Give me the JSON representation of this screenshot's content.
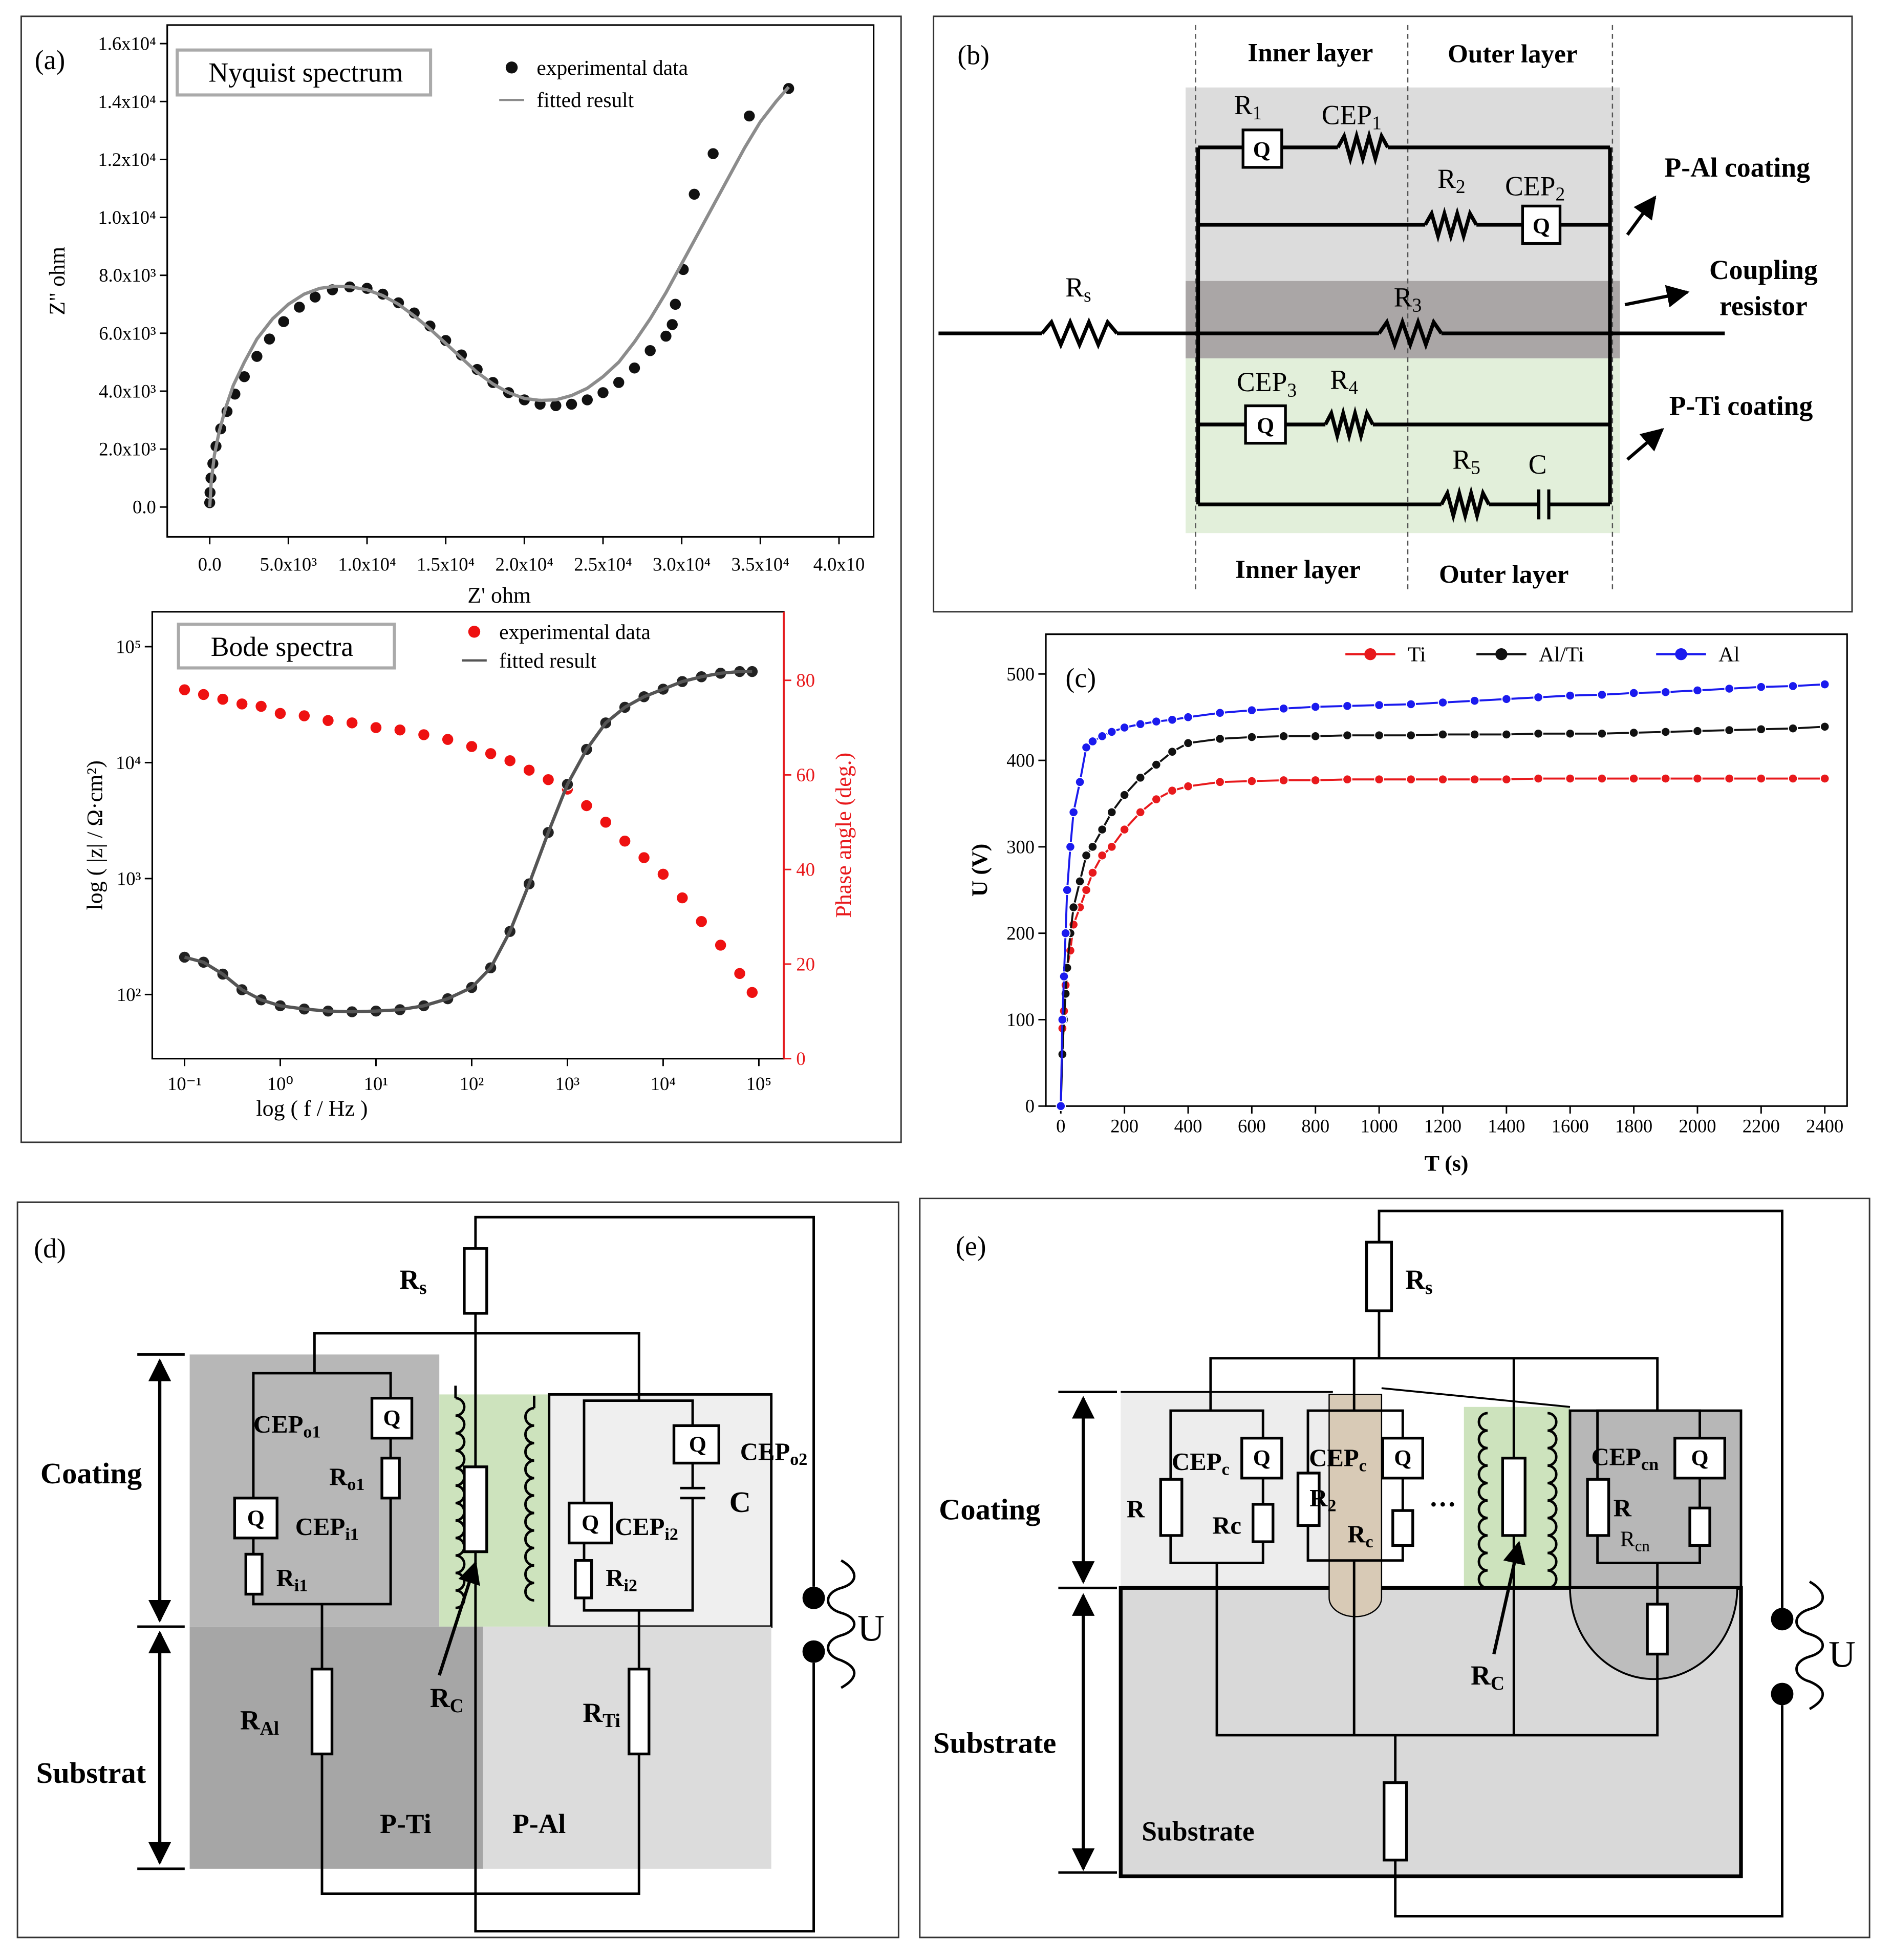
{
  "chart_data": [
    {
      "type": "scatter",
      "label": "(a)",
      "title": "Nyquist spectrum",
      "x_label": "Z' ohm",
      "y_label": "Z\" ohm",
      "xlim": [
        -2700,
        42200
      ],
      "ylim": [
        -1030,
        16640
      ],
      "xticks": [
        {
          "value": 0,
          "label": "0.0"
        },
        {
          "value": 5000,
          "label": "5.0x10³"
        },
        {
          "value": 10000,
          "label": "1.0x10⁴"
        },
        {
          "value": 15000,
          "label": "1.5x10⁴"
        },
        {
          "value": 20000,
          "label": "2.0x10⁴"
        },
        {
          "value": 25000,
          "label": "2.5x10⁴"
        },
        {
          "value": 30000,
          "label": "3.0x10⁴"
        },
        {
          "value": 35000,
          "label": "3.5x10⁴"
        },
        {
          "value": 40000,
          "label": "4.0x10"
        }
      ],
      "yticks": [
        {
          "value": 0,
          "label": "0.0"
        },
        {
          "value": 2000,
          "label": "2.0x10³"
        },
        {
          "value": 4000,
          "label": "4.0x10³"
        },
        {
          "value": 6000,
          "label": "6.0x10³"
        },
        {
          "value": 8000,
          "label": "8.0x10³"
        },
        {
          "value": 10000,
          "label": "1.0x10⁴"
        },
        {
          "value": 12000,
          "label": "1.2x10⁴"
        },
        {
          "value": 14000,
          "label": "1.4x10⁴"
        },
        {
          "value": 16000,
          "label": "1.6x10⁴"
        }
      ],
      "legend": "upper right",
      "series": [
        {
          "name": "experimental data",
          "color": "#111111",
          "marker": "circle",
          "x": [
            0,
            20,
            80,
            200,
            400,
            700,
            1100,
            1600,
            2200,
            3000,
            3800,
            4700,
            5700,
            6700,
            7800,
            8900,
            10000,
            11000,
            12000,
            13000,
            14000,
            15000,
            16000,
            17000,
            18000,
            19000,
            20000,
            21000,
            22000,
            23000,
            24000,
            25000,
            26000,
            27000,
            28000,
            29000,
            29400,
            29600,
            30100,
            30800,
            32000,
            34300,
            36800
          ],
          "values": [
            150,
            500,
            1000,
            1500,
            2100,
            2700,
            3300,
            3900,
            4500,
            5200,
            5800,
            6400,
            6900,
            7250,
            7500,
            7600,
            7550,
            7350,
            7050,
            6700,
            6250,
            5750,
            5250,
            4750,
            4300,
            3950,
            3700,
            3550,
            3500,
            3550,
            3700,
            3950,
            4300,
            4800,
            5400,
            5900,
            6300,
            7000,
            8200,
            10800,
            12200,
            13500,
            14450
          ]
        },
        {
          "name": "fitted result",
          "color": "#8c8c8c",
          "line": true,
          "x": [
            0,
            100,
            300,
            600,
            1000,
            1500,
            2200,
            3000,
            4000,
            5000,
            6000,
            7000,
            8000,
            9000,
            10000,
            11000,
            12000,
            13000,
            14000,
            15000,
            16000,
            17000,
            18000,
            19000,
            20000,
            21000,
            22000,
            23000,
            24000,
            25000,
            26000,
            27000,
            28000,
            29000,
            30000,
            31000,
            32000,
            33000,
            34000,
            35000,
            36000,
            36800
          ],
          "values": [
            0,
            900,
            1800,
            2600,
            3400,
            4200,
            5000,
            5800,
            6500,
            7000,
            7350,
            7550,
            7620,
            7600,
            7500,
            7300,
            7000,
            6600,
            6150,
            5650,
            5150,
            4650,
            4250,
            3950,
            3750,
            3680,
            3700,
            3850,
            4100,
            4500,
            5000,
            5700,
            6500,
            7400,
            8400,
            9400,
            10400,
            11400,
            12400,
            13300,
            14000,
            14500
          ]
        }
      ]
    },
    {
      "type": "line",
      "title": "Bode spectra",
      "x_label": "log ( f / Hz )",
      "y_label": "log ( |z| / Ω·cm²)",
      "y2_label": "Phase angle (deg.)",
      "xscale": "log",
      "yscale": "log",
      "xlim": [
        0.046,
        182000
      ],
      "ylim": [
        28,
        200000
      ],
      "y2lim": [
        0,
        94.5
      ],
      "xticks": [
        {
          "value": 0.1,
          "label": "10⁻¹"
        },
        {
          "value": 1,
          "label": "10⁰"
        },
        {
          "value": 10,
          "label": "10¹"
        },
        {
          "value": 100,
          "label": "10²"
        },
        {
          "value": 1000,
          "label": "10³"
        },
        {
          "value": 10000,
          "label": "10⁴"
        },
        {
          "value": 100000,
          "label": "10⁵"
        }
      ],
      "yticks": [
        {
          "value": 100,
          "label": "10²"
        },
        {
          "value": 1000,
          "label": "10³"
        },
        {
          "value": 10000,
          "label": "10⁴"
        },
        {
          "value": 100000,
          "label": "10⁵"
        }
      ],
      "y2ticks": [
        0,
        20,
        40,
        60,
        80
      ],
      "y2_color": "#e8191c",
      "legend": "upper center",
      "x": [
        0.1,
        0.158,
        0.251,
        0.398,
        0.631,
        1,
        1.78,
        3.16,
        5.62,
        10,
        17.8,
        31.6,
        56.2,
        100,
        158,
        251,
        398,
        631,
        1000,
        1585,
        2512,
        3981,
        6310,
        10000,
        15849,
        25119,
        39811,
        63096,
        85114
      ],
      "series": [
        {
          "name": "experimental data",
          "color": "#ee1111",
          "marker": "circle",
          "axis": "y2",
          "values": [
            78,
            77,
            76,
            75,
            74.5,
            73,
            72.5,
            71.5,
            71,
            70,
            69.5,
            68.5,
            67.5,
            66,
            64.5,
            63,
            61,
            59,
            57,
            53.5,
            50,
            46,
            42.5,
            39,
            34,
            29,
            24,
            18,
            14
          ]
        },
        {
          "color": "#222222",
          "marker": "circle",
          "values": [
            210,
            190,
            150,
            110,
            90,
            80,
            75,
            72,
            71,
            72,
            74,
            80,
            92,
            115,
            170,
            350,
            900,
            2500,
            6500,
            13000,
            22000,
            30000,
            37000,
            43000,
            50000,
            55000,
            59000,
            61000,
            61000
          ]
        },
        {
          "name": "fitted result",
          "color": "#555555",
          "line": true,
          "values": [
            210,
            190,
            150,
            110,
            90,
            80,
            75,
            72,
            71,
            72,
            74,
            80,
            92,
            115,
            170,
            350,
            900,
            2500,
            6500,
            13000,
            22000,
            30000,
            37000,
            43000,
            50000,
            55000,
            59000,
            61000,
            61000
          ]
        }
      ]
    },
    {
      "type": "line",
      "label": "(c)",
      "x_label": "T (s)",
      "y_label": "U (V)",
      "xlim": [
        -47,
        2470
      ],
      "ylim": [
        0,
        546
      ],
      "xticks": [
        0,
        200,
        400,
        600,
        800,
        1000,
        1200,
        1400,
        1600,
        1800,
        2000,
        2200,
        2400
      ],
      "yticks": [
        0,
        100,
        200,
        300,
        400,
        500
      ],
      "legend": "upper right",
      "x": [
        0,
        5,
        10,
        15,
        20,
        30,
        40,
        60,
        80,
        100,
        130,
        160,
        200,
        250,
        300,
        350,
        400,
        500,
        600,
        700,
        800,
        900,
        1000,
        1100,
        1200,
        1300,
        1400,
        1500,
        1600,
        1700,
        1800,
        1900,
        2000,
        2100,
        2200,
        2300,
        2400
      ],
      "series": [
        {
          "name": "Ti",
          "color": "#e8191c",
          "line": true,
          "marker": "circle",
          "values": [
            0,
            90,
            110,
            140,
            160,
            180,
            210,
            230,
            250,
            270,
            290,
            300,
            320,
            340,
            355,
            365,
            370,
            375,
            376,
            377,
            377,
            378,
            378,
            378,
            378,
            378,
            378,
            379,
            379,
            379,
            379,
            379,
            379,
            379,
            379,
            379,
            379
          ]
        },
        {
          "name": "Al/Ti",
          "color": "#111111",
          "line": true,
          "marker": "circle",
          "values": [
            0,
            60,
            100,
            130,
            160,
            200,
            230,
            260,
            290,
            300,
            320,
            340,
            360,
            380,
            395,
            410,
            420,
            425,
            427,
            428,
            428,
            429,
            429,
            429,
            430,
            430,
            430,
            431,
            431,
            431,
            432,
            433,
            434,
            435,
            436,
            437,
            439
          ]
        },
        {
          "name": "Al",
          "color": "#1a1aee",
          "line": true,
          "marker": "circle",
          "values": [
            0,
            100,
            150,
            200,
            250,
            300,
            340,
            375,
            415,
            422,
            428,
            433,
            438,
            442,
            445,
            447,
            450,
            455,
            458,
            460,
            462,
            463,
            464,
            465,
            467,
            469,
            471,
            473,
            475,
            476,
            478,
            479,
            481,
            483,
            485,
            486,
            488
          ]
        }
      ]
    }
  ],
  "diagrams": {
    "b": {
      "labels": [
        {
          "text": "(b)"
        },
        {
          "text": "Inner layer"
        },
        {
          "text": "Outer layer"
        },
        {
          "text": "Inner layer"
        },
        {
          "text": "Outer layer"
        },
        {
          "text": "R",
          "sub": "1"
        },
        {
          "text": "CEP",
          "sub": "1"
        },
        {
          "text": "Q"
        },
        {
          "text": "R",
          "sub": "2"
        },
        {
          "text": "CEP",
          "sub": "2"
        },
        {
          "text": "Q"
        },
        {
          "text": "R",
          "sub": "s"
        },
        {
          "text": "R",
          "sub": "3"
        },
        {
          "text": "CEP",
          "sub": "3"
        },
        {
          "text": "R",
          "sub": "4"
        },
        {
          "text": "Q"
        },
        {
          "text": "R",
          "sub": "5"
        },
        {
          "text": "C"
        },
        {
          "text": "P-Al coating"
        },
        {
          "text": "Coupling"
        },
        {
          "text": "resistor"
        },
        {
          "text": "P-Ti coating"
        }
      ]
    },
    "d": {
      "labels": [
        {
          "text": "(d)"
        },
        {
          "text": "R",
          "sub": "s"
        },
        {
          "text": "Coating"
        },
        {
          "text": "Substrat"
        },
        {
          "text": "CEP",
          "sub": "o1"
        },
        {
          "text": "Q"
        },
        {
          "text": "R",
          "sub": "o1"
        },
        {
          "text": "Q"
        },
        {
          "text": "CEP",
          "sub": "i1"
        },
        {
          "text": "R",
          "sub": "i1"
        },
        {
          "text": "R",
          "sub": "C"
        },
        {
          "text": "Q"
        },
        {
          "text": "CEP",
          "sub": "i2"
        },
        {
          "text": "R",
          "sub": "i2"
        },
        {
          "text": "Q"
        },
        {
          "text": "CEP",
          "sub": "o2"
        },
        {
          "text": "C"
        },
        {
          "text": "R",
          "sub": "Al"
        },
        {
          "text": "R",
          "sub": "Ti"
        },
        {
          "text": "P-Ti"
        },
        {
          "text": "P-Al"
        },
        {
          "text": "U"
        }
      ]
    },
    "e": {
      "labels": [
        {
          "text": "(e)"
        },
        {
          "text": "R",
          "sub": "s"
        },
        {
          "text": "Coating"
        },
        {
          "text": "Substrate"
        },
        {
          "text": "Substrate"
        },
        {
          "text": "R"
        },
        {
          "text": "CEP",
          "sub": "c"
        },
        {
          "text": "Q"
        },
        {
          "text": "Rc"
        },
        {
          "text": "CEP",
          "sub": "c"
        },
        {
          "text": "Q"
        },
        {
          "text": "R",
          "sub": "2"
        },
        {
          "text": "R",
          "sub": "c"
        },
        {
          "text": "···"
        },
        {
          "text": "CEP",
          "sub": "cn"
        },
        {
          "text": "Q"
        },
        {
          "text": "R"
        },
        {
          "text": "R",
          "sub": "cn"
        },
        {
          "text": "R",
          "sub": "C"
        },
        {
          "text": "U"
        }
      ]
    }
  }
}
